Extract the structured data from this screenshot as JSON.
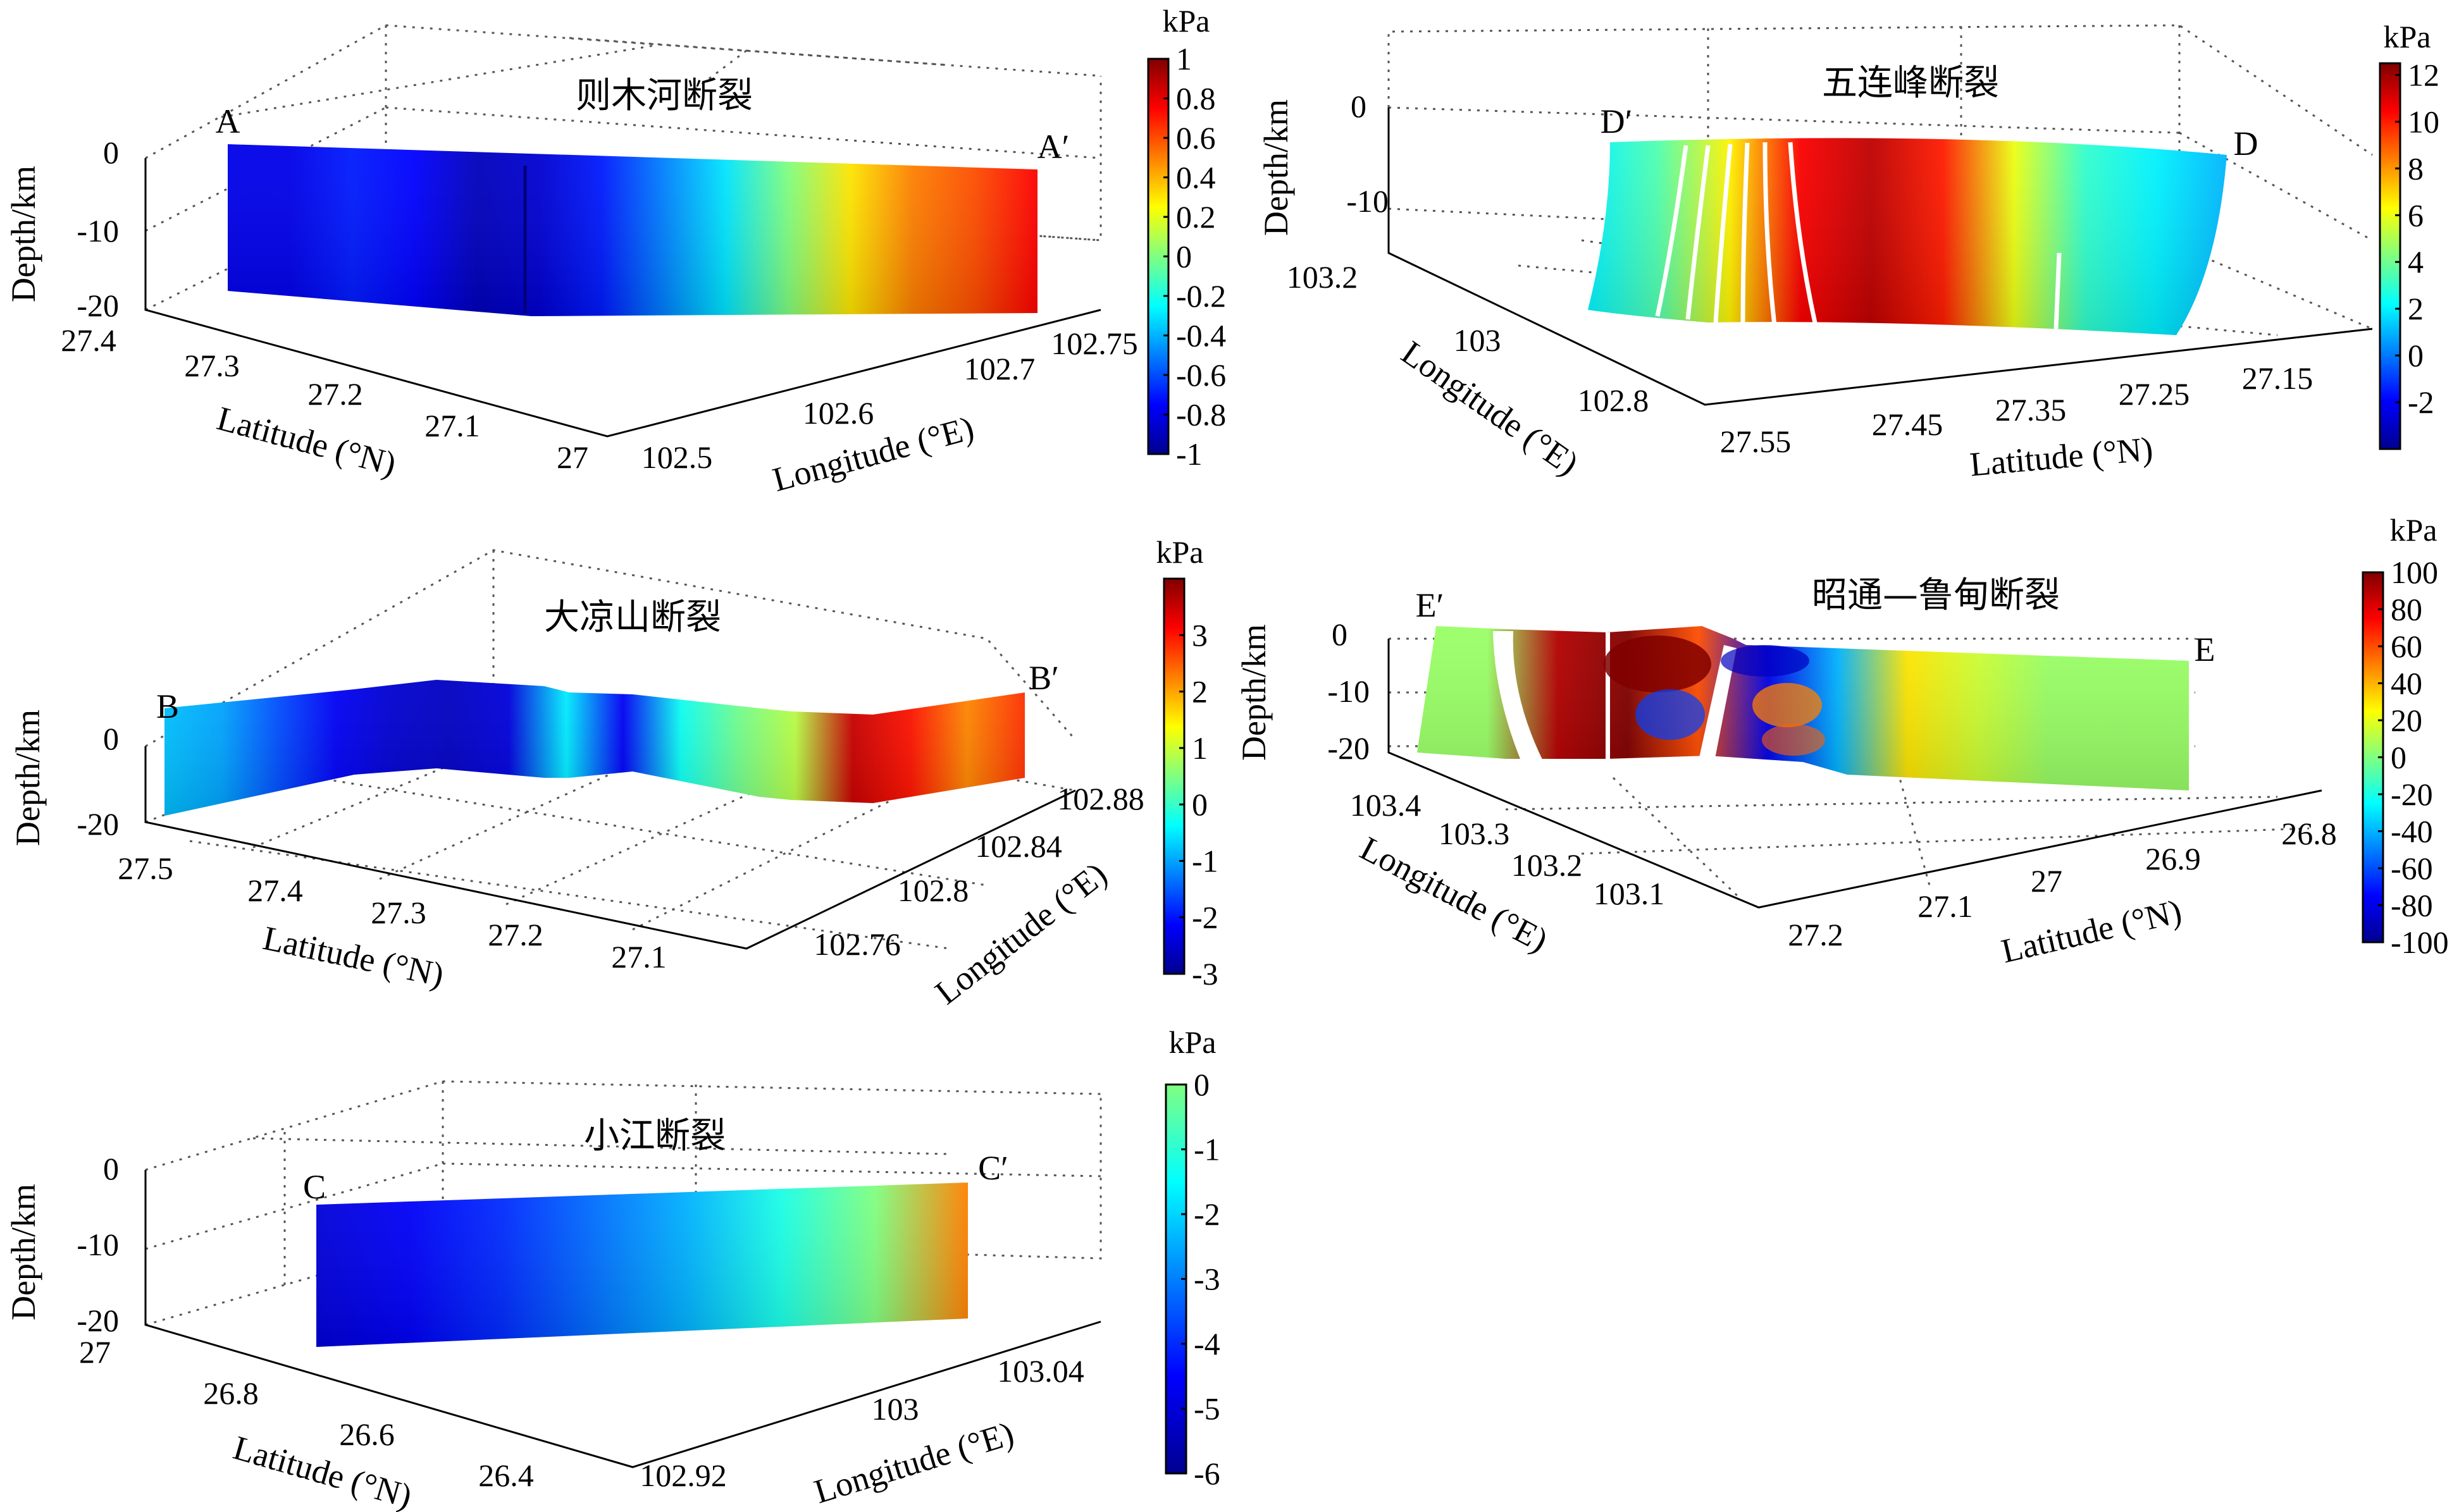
{
  "colors": {
    "jet": [
      "#00008f",
      "#0000ff",
      "#0080ff",
      "#00ffff",
      "#80ff80",
      "#ffff00",
      "#ff8000",
      "#ff0000",
      "#800000"
    ],
    "grid": "#555555",
    "axis": "#000000"
  },
  "chart_data": [
    {
      "id": "A",
      "type": "heatmap",
      "title": "则木河断裂",
      "endpoints": [
        "A",
        "A′"
      ],
      "ylabel": "Depth/km",
      "depth_ticks": [
        "0",
        "-10",
        "-20"
      ],
      "lat_label": "Latitude (°N)",
      "lat_ticks": [
        "27.4",
        "27.3",
        "27.2",
        "27.1",
        "27"
      ],
      "lon_label": "Longitude (°E)",
      "lon_ticks": [
        "102.5",
        "102.6",
        "102.7",
        "102.75"
      ],
      "colorbar": {
        "unit": "kPa",
        "range": [
          -1,
          1
        ],
        "ticks": [
          "1",
          "0.8",
          "0.6",
          "0.4",
          "0.2",
          "0",
          "-0.2",
          "-0.4",
          "-0.6",
          "-0.8",
          "-1"
        ]
      },
      "surface_values": [
        -0.8,
        -0.8,
        -0.7,
        -0.75,
        -0.9,
        -0.85,
        -0.7,
        -0.5,
        -0.3,
        0.0,
        0.3,
        0.5,
        0.6,
        0.75
      ]
    },
    {
      "id": "B",
      "type": "heatmap",
      "title": "大凉山断裂",
      "endpoints": [
        "B",
        "B′"
      ],
      "ylabel": "Depth/km",
      "depth_ticks": [
        "0",
        "-20"
      ],
      "lat_label": "Latitude (°N)",
      "lat_ticks": [
        "27.5",
        "27.4",
        "27.3",
        "27.2",
        "27.1"
      ],
      "lon_label": "Longitude (°E)",
      "lon_ticks": [
        "102.76",
        "102.8",
        "102.84",
        "102.88"
      ],
      "colorbar": {
        "unit": "kPa",
        "range": [
          -3,
          4
        ],
        "ticks": [
          "3",
          "2",
          "1",
          "0",
          "-1",
          "-2",
          "-3"
        ]
      },
      "surface_values": [
        -0.8,
        -1.0,
        -1.6,
        -2.2,
        -2.5,
        -2.6,
        -2.4,
        -0.5,
        -2.2,
        -0.3,
        0.4,
        0.9,
        3.5,
        3.0,
        2.2,
        2.8
      ]
    },
    {
      "id": "C",
      "type": "heatmap",
      "title": "小江断裂",
      "endpoints": [
        "C",
        "C′"
      ],
      "ylabel": "Depth/km",
      "depth_ticks": [
        "0",
        "-10",
        "-20"
      ],
      "lat_label": "Latitude (°N)",
      "lat_ticks": [
        "27",
        "26.8",
        "26.6",
        "26.4"
      ],
      "lon_label": "Longitude (°E)",
      "lon_ticks": [
        "102.92",
        "103",
        "103.04"
      ],
      "colorbar": {
        "unit": "kPa",
        "range": [
          -6,
          0
        ],
        "ticks": [
          "0",
          "-1",
          "-2",
          "-3",
          "-4",
          "-5",
          "-6"
        ]
      },
      "surface_values": [
        -5.5,
        -5.3,
        -5.0,
        -4.6,
        -4.2,
        -3.6,
        -3.0,
        -1.5
      ]
    },
    {
      "id": "D",
      "type": "heatmap",
      "title": "五连峰断裂",
      "endpoints": [
        "D′",
        "D"
      ],
      "ylabel": "Depth/km",
      "depth_ticks": [
        "0",
        "-10"
      ],
      "lat_label": "Latitude (°N)",
      "lat_ticks": [
        "27.55",
        "27.45",
        "27.35",
        "27.25",
        "27.15"
      ],
      "lon_label": "Longitude (°E)",
      "lon_ticks": [
        "103.2",
        "103",
        "102.8"
      ],
      "colorbar": {
        "unit": "kPa",
        "range": [
          -4,
          12.5
        ],
        "ticks": [
          "12",
          "10",
          "8",
          "6",
          "4",
          "2",
          "0",
          "-2"
        ]
      },
      "surface_values": [
        2.0,
        3.5,
        6.5,
        10.5,
        11.5,
        10.0,
        6.0,
        3.0,
        2.0,
        1.0
      ]
    },
    {
      "id": "E",
      "type": "heatmap",
      "title": "昭通—鲁甸断裂",
      "endpoints": [
        "E′",
        "E"
      ],
      "ylabel": "Depth/km",
      "depth_ticks": [
        "0",
        "-10",
        "-20"
      ],
      "lat_label": "Latitude (°N)",
      "lat_ticks": [
        "27.2",
        "27.1",
        "27",
        "26.9",
        "26.8"
      ],
      "lon_label": "Longitude (°E)",
      "lon_ticks": [
        "103.4",
        "103.3",
        "103.2",
        "103.1"
      ],
      "colorbar": {
        "unit": "kPa",
        "range": [
          -100,
          100
        ],
        "ticks": [
          "100",
          "80",
          "60",
          "40",
          "20",
          "0",
          "-20",
          "-40",
          "-60",
          "-80",
          "-100"
        ]
      },
      "surface_values": [
        5,
        5,
        90,
        100,
        60,
        -80,
        -40,
        30,
        15,
        5,
        5,
        5
      ]
    }
  ]
}
